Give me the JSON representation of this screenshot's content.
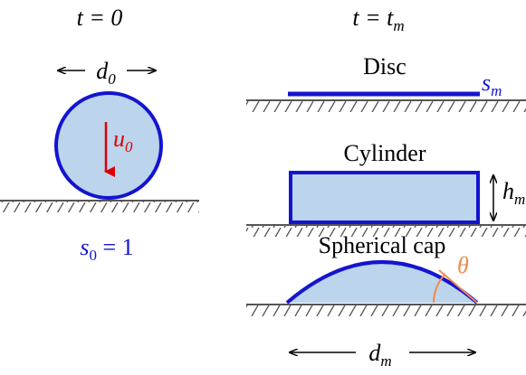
{
  "left": {
    "title": {
      "base": "t = 0"
    },
    "diameter": {
      "base": "d",
      "sub": "0"
    },
    "velocity": {
      "base": "u",
      "sub": "0"
    },
    "spreading": {
      "base": "s",
      "sub": "0",
      "rest": " = 1"
    }
  },
  "right": {
    "title": {
      "base": "t = t",
      "sub": "m"
    },
    "disc": {
      "label": "Disc",
      "symbol": {
        "base": "s",
        "sub": "m"
      }
    },
    "cylinder": {
      "label": "Cylinder",
      "symbol": {
        "base": "h",
        "sub": "m"
      }
    },
    "cap": {
      "label": "Spherical cap",
      "symbol": "θ"
    },
    "diameter": {
      "base": "d",
      "sub": "m"
    }
  }
}
